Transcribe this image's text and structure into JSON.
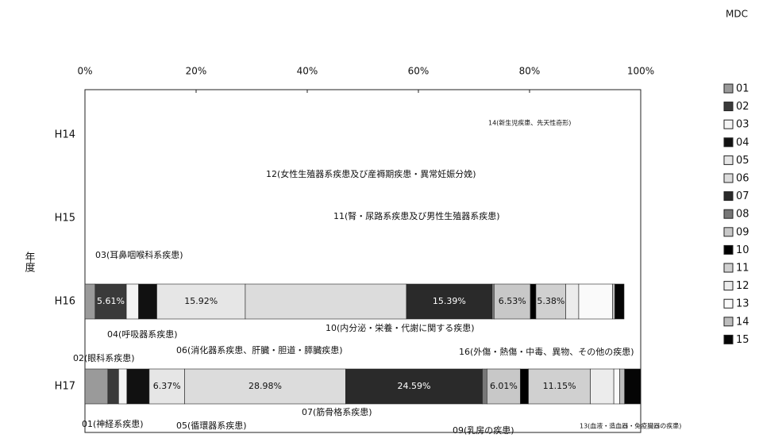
{
  "chart_data": {
    "type": "stacked-bar-horizontal",
    "y_label": "年度",
    "legend_title": "MDC",
    "categories": [
      "H14",
      "H15",
      "H16",
      "H17"
    ],
    "xlim": [
      0,
      100
    ],
    "xticks": [
      {
        "value": 0,
        "label": "0%"
      },
      {
        "value": 20,
        "label": "20%"
      },
      {
        "value": 40,
        "label": "40%"
      },
      {
        "value": 60,
        "label": "60%"
      },
      {
        "value": 80,
        "label": "80%"
      },
      {
        "value": 100,
        "label": "100%"
      }
    ],
    "series": [
      {
        "name": "01",
        "color": "#9a9a9a",
        "values": [
          null,
          null,
          1.83,
          4.12
        ],
        "value_labels": [
          null,
          null,
          "1.83%",
          "4.12%"
        ]
      },
      {
        "name": "02",
        "color": "#3a3a3a",
        "values": [
          null,
          null,
          5.61,
          1.93
        ],
        "value_labels": [
          null,
          null,
          "5.61%",
          "1.93%"
        ]
      },
      {
        "name": "03",
        "color": "#f4f4f4",
        "values": [
          null,
          null,
          2.21,
          1.5
        ],
        "value_labels": [
          null,
          null,
          "2.21%",
          null
        ]
      },
      {
        "name": "04",
        "color": "#111111",
        "values": [
          null,
          null,
          3.28,
          4.01
        ],
        "value_labels": [
          null,
          null,
          "3.28%",
          "4.01%"
        ]
      },
      {
        "name": "05",
        "color": "#e6e6e6",
        "values": [
          null,
          null,
          15.92,
          6.37
        ],
        "value_labels": [
          null,
          null,
          "15.92%",
          "6.37%"
        ]
      },
      {
        "name": "06",
        "color": "#dcdcdc",
        "values": [
          null,
          null,
          29.0,
          28.98
        ],
        "value_labels": [
          null,
          null,
          null,
          "28.98%"
        ]
      },
      {
        "name": "07",
        "color": "#2a2a2a",
        "values": [
          null,
          null,
          15.39,
          24.59
        ],
        "value_labels": [
          null,
          null,
          "15.39%",
          "24.59%"
        ]
      },
      {
        "name": "08",
        "color": "#777777",
        "values": [
          null,
          null,
          0.38,
          0.84
        ],
        "value_labels": [
          null,
          null,
          "0.38%",
          "0.84%"
        ]
      },
      {
        "name": "09",
        "color": "#c8c8c8",
        "values": [
          null,
          null,
          6.53,
          6.01
        ],
        "value_labels": [
          null,
          null,
          "6.53%",
          "6.01%"
        ]
      },
      {
        "name": "10",
        "color": "#000000",
        "values": [
          null,
          null,
          0.99,
          1.44
        ],
        "value_labels": [
          null,
          null,
          "0.99%",
          "1.44%"
        ]
      },
      {
        "name": "11",
        "color": "#d0d0d0",
        "values": [
          null,
          null,
          5.38,
          11.15
        ],
        "value_labels": [
          null,
          null,
          "5.38%",
          "11.15%"
        ]
      },
      {
        "name": "12",
        "color": "#ececec",
        "values": [
          null,
          null,
          2.33,
          4.22
        ],
        "value_labels": [
          null,
          null,
          "2.33%",
          "4.22%"
        ]
      },
      {
        "name": "13",
        "color": "#fafafa",
        "values": [
          null,
          null,
          6.09,
          1.06
        ],
        "value_labels": [
          null,
          null,
          null,
          "1.06%"
        ]
      },
      {
        "name": "14",
        "color": "#bdbdbd",
        "values": [
          null,
          null,
          0.42,
          0.88
        ],
        "value_labels": [
          null,
          null,
          "0.42%",
          "0.88%"
        ]
      },
      {
        "name": "15",
        "color": "#050505",
        "values": [
          null,
          null,
          1.64,
          2.9
        ],
        "value_labels": [
          null,
          null,
          "1.64%",
          null
        ]
      }
    ],
    "annotations": [
      "03(耳鼻咽喉科系疾患)",
      "04(呼吸器系疾患)",
      "02(眼科系疾患)",
      "06(消化器系疾患、肝臓・胆道・膵臓疾患)",
      "10(内分泌・栄養・代謝に関する疾患)",
      "12(女性生殖器系疾患及び産褥期疾患・異常妊娠分娩)",
      "11(腎・尿路系疾患及び男性生殖器系疾患)",
      "14(新生児疾患、先天性奇形)",
      "16(外傷・熱傷・中毒、異物、その他の疾患)",
      "01(神経系疾患)",
      "05(循環器系疾患)",
      "07(筋骨格系疾患)",
      "09(乳房の疾患)",
      "13(血液・造血器・免疫臓器の疾患)"
    ]
  }
}
